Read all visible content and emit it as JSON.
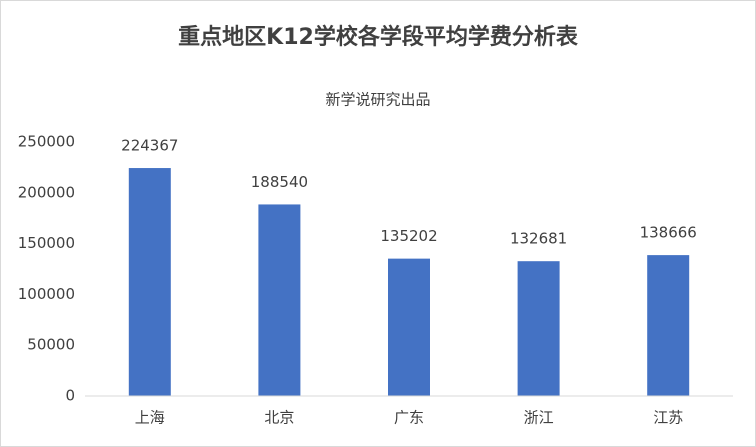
{
  "chart_data": {
    "type": "bar",
    "title": "重点地区K12学校各学段平均学费分析表",
    "subtitle": "新学说研究出品",
    "categories": [
      "上海",
      "北京",
      "广东",
      "浙江",
      "江苏"
    ],
    "values": [
      224367,
      188540,
      135202,
      132681,
      138666
    ],
    "color": "#4472c4",
    "ylim": [
      0,
      250000
    ],
    "yticks": [
      0,
      50000,
      100000,
      150000,
      200000,
      250000
    ],
    "grid": false
  }
}
